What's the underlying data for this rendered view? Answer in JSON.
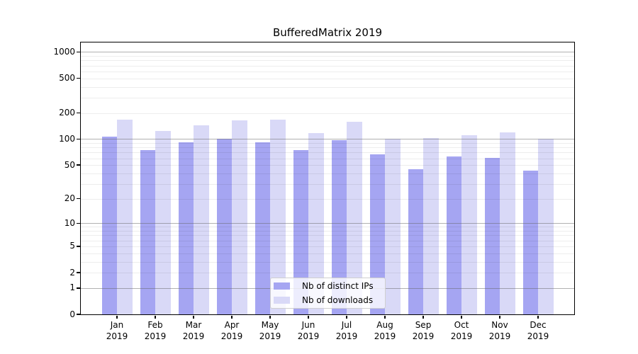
{
  "title": "BufferedMatrix 2019",
  "colors": {
    "ips": "#a5a5f2",
    "downloads": "#d9d9f7",
    "grid_major": "rgba(100,100,100,0.5)",
    "grid_minor": "rgba(0,0,0,0.07)",
    "axis": "#000000",
    "legend_border": "#cfcfcf"
  },
  "legend": {
    "items": [
      {
        "label": "Nb of distinct IPs",
        "color_key": "ips"
      },
      {
        "label": "Nb of downloads",
        "color_key": "downloads"
      }
    ]
  },
  "chart_data": {
    "type": "bar",
    "title": "BufferedMatrix 2019",
    "months": [
      "Jan",
      "Feb",
      "Mar",
      "Apr",
      "May",
      "Jun",
      "Jul",
      "Aug",
      "Sep",
      "Oct",
      "Nov",
      "Dec"
    ],
    "year_label": "2019",
    "categories": [
      "Jan 2019",
      "Feb 2019",
      "Mar 2019",
      "Apr 2019",
      "May 2019",
      "Jun 2019",
      "Jul 2019",
      "Aug 2019",
      "Sep 2019",
      "Oct 2019",
      "Nov 2019",
      "Dec 2019"
    ],
    "series": [
      {
        "name": "Nb of distinct IPs",
        "values": [
          106,
          74,
          92,
          101,
          91,
          75,
          97,
          66,
          45,
          63,
          61,
          43
        ]
      },
      {
        "name": "Nb of downloads",
        "values": [
          167,
          125,
          145,
          164,
          167,
          118,
          158,
          101,
          103,
          111,
          119,
          100
        ]
      }
    ],
    "yscale": "log1p",
    "y_tick_values": [
      0,
      1,
      2,
      5,
      10,
      20,
      50,
      100,
      200,
      500,
      1000
    ],
    "y_tick_labels": [
      "0",
      "1",
      "2",
      "5",
      "10",
      "20",
      "50",
      "100",
      "200",
      "500",
      "1000"
    ],
    "y_major_grid_values": [
      1,
      10,
      100,
      1000
    ],
    "ylim": [
      0,
      1285
    ],
    "xlabel": "",
    "ylabel": "",
    "grid": true,
    "legend_position": "bottom-center-inside"
  }
}
